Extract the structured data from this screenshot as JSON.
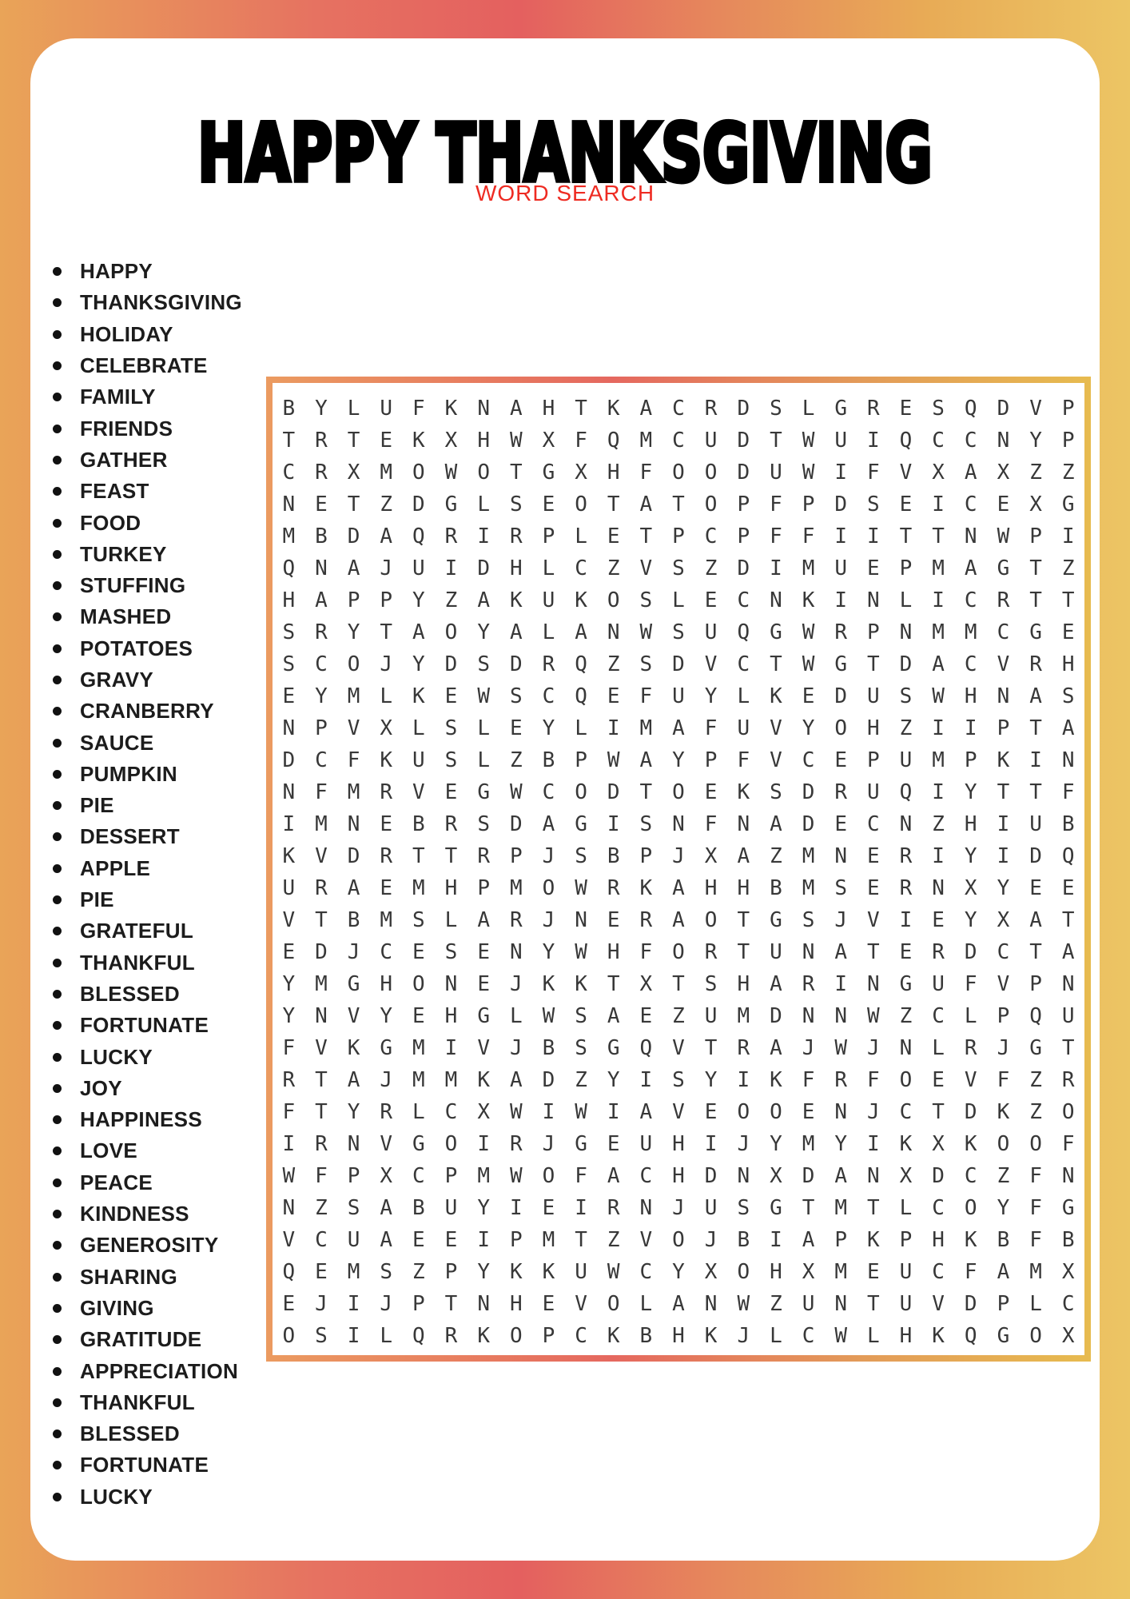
{
  "page": {
    "title": "HAPPY THANKSGIVING",
    "subtitle": "WORD SEARCH"
  },
  "colors": {
    "background_left": "#e9a458",
    "background_center_red": "#e4605f",
    "background_right_gold": "#ecc564",
    "card": "#ffffff",
    "subtitle_red": "#ee2b22",
    "grid_frame_orange": "#eb9b60",
    "grid_frame_gold": "#e7bb4f",
    "word_text": "#1c1c1c",
    "grid_letter": "#383838"
  },
  "word_list": [
    "HAPPY",
    "THANKSGIVING",
    "HOLIDAY",
    "CELEBRATE",
    "FAMILY",
    "FRIENDS",
    "GATHER",
    "FEAST",
    "FOOD",
    "TURKEY",
    "STUFFING",
    "MASHED",
    "POTATOES",
    "GRAVY",
    "CRANBERRY",
    "SAUCE",
    "PUMPKIN",
    "PIE",
    "DESSERT",
    "APPLE",
    "PIE",
    "GRATEFUL",
    "THANKFUL",
    "BLESSED",
    "FORTUNATE",
    "LUCKY",
    "JOY",
    "HAPPINESS",
    "LOVE",
    "PEACE",
    "KINDNESS",
    "GENEROSITY",
    "SHARING",
    "GIVING",
    "GRATITUDE",
    "APPRECIATION",
    "THANKFUL",
    "BLESSED",
    "FORTUNATE",
    "LUCKY"
  ],
  "grid": {
    "rows": 30,
    "cols": 25,
    "letters": [
      "BYLUFKNAHTKACRDSLGRESQDVP",
      "TRTEKXHWXFQMCUDTWUIQCCNYP",
      "CRXMOWOTGXHFOODUWIFVXAXZZ",
      "NETZDGLSEOTATOPFPDSEICEXG",
      "MBDAQRIRPLETPCPFFIITTNWPI",
      "QNAJUIDHLCZVSZDIMUEPMAGTZ",
      "HAPPYZAKUKOSLECNKINLICRTT",
      "SRYTAOYALANWSUQGWRPNMMCGE",
      "SCOJYDSDRQZSDVCTWGTDACVRH",
      "EYMLKEWSCQEFUYLKEDUSWHNAS",
      "NPVXLSLEYLIMAFUVYOHZIIPTA",
      "DCFKUSLZBPWAYPFVCEPUMPKIN",
      "NFMRVEGWCODTOEKSDRUQIYTTF",
      "IMNEBRSDAGISNFNADECNZHIUB",
      "KVDRTTRPJSBPJXAZMNERIYIDQ",
      "URAEMHPMOWRKAHHBMSERNXYEE",
      "VTBMSLARJNERAOTGSJVIEYXAT",
      "EDJCESENYWHFORTUNATERDCTA",
      "YMGHONEJKKTXTSHARINGUFVPN",
      "YNVYEHGLWSAEZUMDNNWZCLPQU",
      "FVKGMIVJBSGQVTRAJWJNLRJGT",
      "RTAJMMKADZYISYIKFRFOEVFZR",
      "FTYRLCXWIWIAVEOOENJCTDKZO",
      "IRNVGOIRJGEUHIJYMYIKXKOOF",
      "WFPXCPMWOFACHDNXDANXDCZFN",
      "NZSABUYIEIRNJUSGTMTLCOYFG",
      "VCUAEEIPMTZVOJBIAPKPHKBFB",
      "QEMSZPYKKUWCYXOHXMEUCFAMX",
      "EJIJPTNHEVOLANWZUNTUVDPLC",
      "OSILQRKOPCKBHKJLCWLHKQGOX"
    ]
  }
}
